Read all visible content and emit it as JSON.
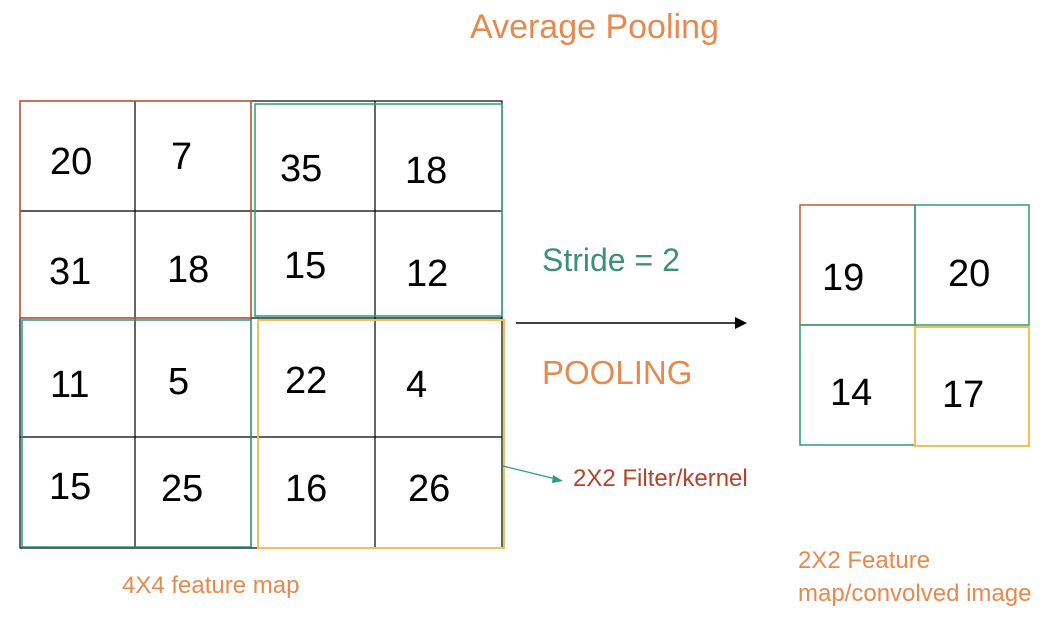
{
  "title": "Average Pooling",
  "stride_label": "Stride = 2",
  "operation_label": "POOLING",
  "filter_label": "2X2 Filter/kernel",
  "input_label": "4X4 feature map",
  "output_label_line1": "2X2 Feature",
  "output_label_line2": "map/convolved image",
  "input_grid": [
    [
      "20",
      "7",
      "35",
      "18"
    ],
    [
      "31",
      "18",
      "15",
      "12"
    ],
    [
      "11",
      "5",
      "22",
      "4"
    ],
    [
      "15",
      "25",
      "16",
      "26"
    ]
  ],
  "output_grid": [
    [
      "19",
      "20"
    ],
    [
      "14",
      "17"
    ]
  ],
  "colors": {
    "quadrant_top_left": "#c0583a",
    "quadrant_top_right": "#2e9a7e",
    "quadrant_bottom_left": "#2e9a7e",
    "quadrant_bottom_right": "#e8c55a",
    "grid_line": "#000000"
  }
}
